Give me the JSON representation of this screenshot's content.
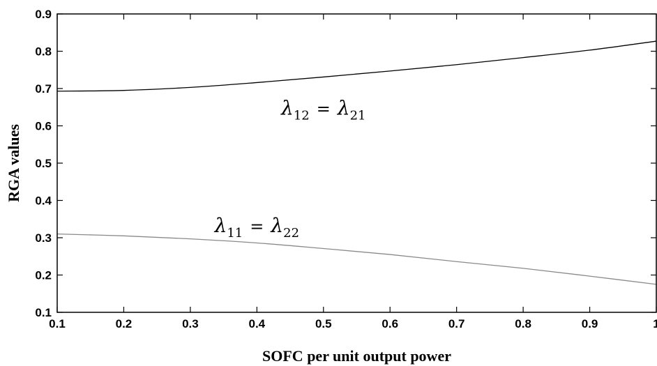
{
  "chart_data": {
    "type": "line",
    "title": "",
    "xlabel": "SOFC per unit output power",
    "ylabel": "RGA values",
    "xlim": [
      0.1,
      1.0
    ],
    "ylim": [
      0.1,
      0.9
    ],
    "xticks": [
      "0.1",
      "0.2",
      "0.3",
      "0.4",
      "0.5",
      "0.6",
      "0.7",
      "0.8",
      "0.9",
      "1"
    ],
    "yticks": [
      "0.1",
      "0.2",
      "0.3",
      "0.4",
      "0.5",
      "0.6",
      "0.7",
      "0.8",
      "0.9"
    ],
    "grid": false,
    "series": [
      {
        "color": "#000000",
        "x": [
          0.1,
          0.2,
          0.3,
          0.4,
          0.5,
          0.6,
          0.7,
          0.8,
          0.9,
          1.0
        ],
        "y": [
          0.693,
          0.695,
          0.703,
          0.716,
          0.731,
          0.747,
          0.764,
          0.783,
          0.803,
          0.827
        ]
      },
      {
        "color": "#8a8a8a",
        "x": [
          0.1,
          0.2,
          0.3,
          0.4,
          0.5,
          0.6,
          0.7,
          0.8,
          0.9,
          1.0
        ],
        "y": [
          0.31,
          0.305,
          0.297,
          0.286,
          0.271,
          0.255,
          0.236,
          0.218,
          0.197,
          0.175
        ]
      }
    ],
    "annotations": [
      {
        "base_left": "λ",
        "sub_left": "12",
        "equals": "=",
        "base_right": "λ",
        "sub_right": "21",
        "x": 0.5,
        "y": 0.63
      },
      {
        "base_left": "λ",
        "sub_left": "11",
        "equals": "=",
        "base_right": "λ",
        "sub_right": "22",
        "x": 0.4,
        "y": 0.315
      }
    ]
  }
}
